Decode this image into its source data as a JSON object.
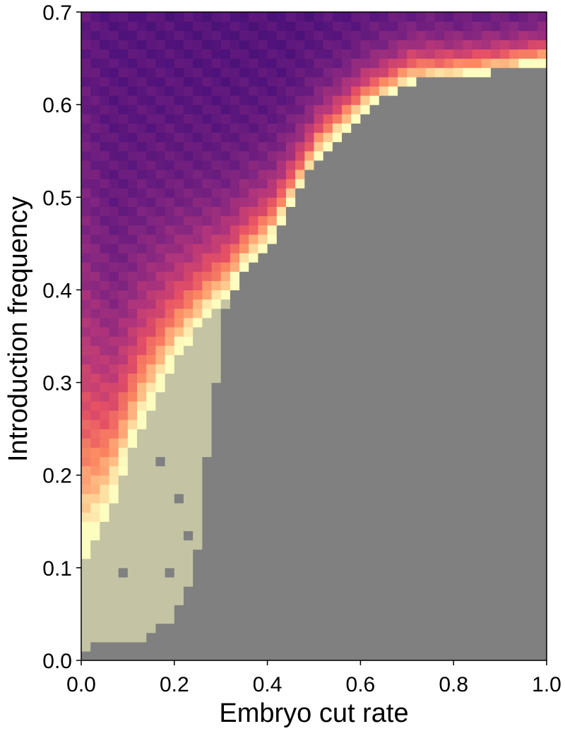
{
  "chart_data": {
    "type": "heatmap",
    "title": "",
    "xlabel": "Embryo cut rate",
    "ylabel": "Introduction frequency",
    "xlim": [
      0.0,
      1.0
    ],
    "ylim": [
      0.0,
      0.7
    ],
    "xticks": [
      0.0,
      0.2,
      0.4,
      0.6,
      0.8,
      1.0
    ],
    "yticks": [
      0.0,
      0.1,
      0.2,
      0.3,
      0.4,
      0.5,
      0.6,
      0.7
    ],
    "xtick_labels": [
      "0.0",
      "0.2",
      "0.4",
      "0.6",
      "0.8",
      "1.0"
    ],
    "ytick_labels": [
      "0.0",
      "0.1",
      "0.2",
      "0.3",
      "0.4",
      "0.5",
      "0.6",
      "0.7"
    ],
    "grid": false,
    "colormap": "magma",
    "grid_size": {
      "nx": 50,
      "ny": 70,
      "x_step": 0.02,
      "y_step": 0.01
    },
    "categorical_colors": {
      "gray_region": "#808080",
      "beige_region": "#c4c4a4"
    },
    "boundaries": {
      "gray_start_y": [
        [
          0.0,
          0.01
        ],
        [
          0.12,
          0.02
        ],
        [
          0.18,
          0.04
        ],
        [
          0.22,
          0.08
        ],
        [
          0.24,
          0.12
        ],
        [
          0.25,
          0.16
        ],
        [
          0.26,
          0.22
        ],
        [
          0.28,
          0.32
        ],
        [
          0.3,
          0.38
        ],
        [
          0.33,
          0.41
        ],
        [
          0.4,
          0.45
        ],
        [
          0.5,
          0.54
        ],
        [
          0.6,
          0.59
        ],
        [
          0.7,
          0.62
        ],
        [
          0.8,
          0.625
        ],
        [
          0.9,
          0.632
        ],
        [
          1.0,
          0.64
        ]
      ],
      "beige_top_y": [
        [
          0.0,
          0.11
        ],
        [
          0.03,
          0.13
        ],
        [
          0.06,
          0.17
        ],
        [
          0.09,
          0.21
        ],
        [
          0.12,
          0.25
        ],
        [
          0.15,
          0.28
        ],
        [
          0.18,
          0.31
        ],
        [
          0.2,
          0.325
        ],
        [
          0.23,
          0.345
        ],
        [
          0.26,
          0.365
        ],
        [
          0.29,
          0.38
        ],
        [
          0.3,
          0.385
        ]
      ],
      "colored_band_intensity": [
        [
          0.0,
          0.55
        ],
        [
          0.03,
          0.65
        ],
        [
          0.06,
          0.85
        ],
        [
          0.12,
          1.0
        ],
        [
          0.2,
          1.3
        ],
        [
          0.3,
          1.7
        ],
        [
          0.4,
          2.2
        ],
        [
          0.5,
          2.8
        ],
        [
          0.6,
          3.2
        ],
        [
          0.7,
          3.6
        ],
        [
          0.8,
          4.0
        ],
        [
          0.9,
          4.3
        ],
        [
          1.0,
          4.6
        ]
      ]
    },
    "beige_outliers": [
      [
        0.28,
        0.3
      ],
      [
        0.28,
        0.31
      ]
    ],
    "gray_outliers": [
      [
        0.08,
        0.09
      ],
      [
        0.18,
        0.09
      ],
      [
        0.16,
        0.21
      ],
      [
        0.2,
        0.17
      ],
      [
        0.22,
        0.13
      ]
    ]
  }
}
